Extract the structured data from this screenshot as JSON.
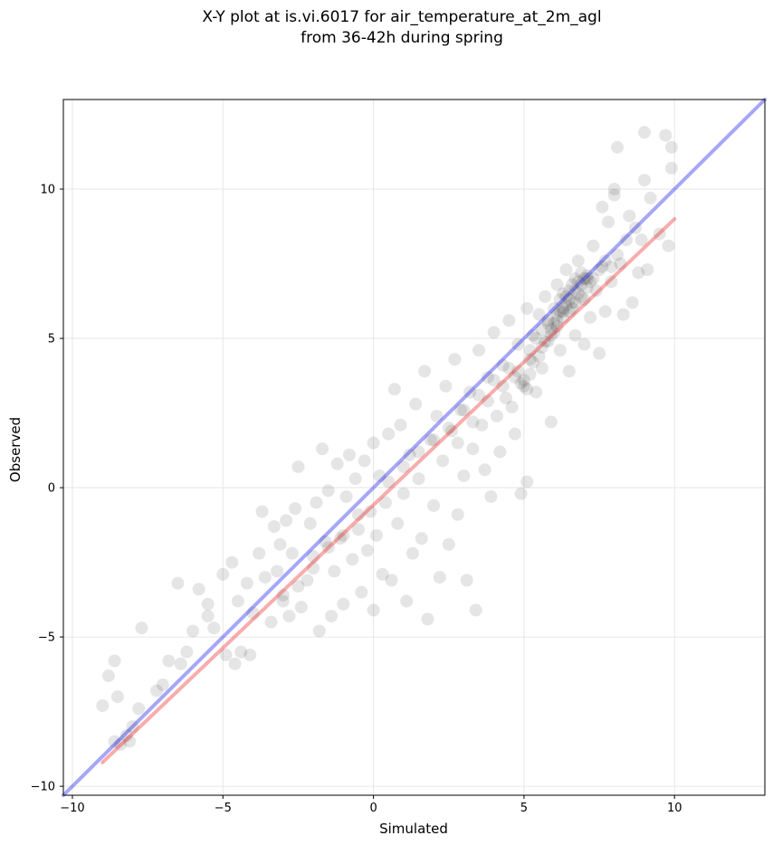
{
  "chart_data": {
    "type": "scatter",
    "title_lines": [
      "X-Y plot at is.vi.6017 for air_temperature_at_2m_agl",
      "from 36-42h during spring"
    ],
    "xlabel": "Simulated",
    "ylabel": "Observed",
    "xlim": [
      -10.3,
      13.0
    ],
    "ylim": [
      -10.3,
      13.0
    ],
    "xticks": [
      -10,
      -5,
      0,
      5,
      10
    ],
    "yticks": [
      -10,
      -5,
      0,
      5,
      10
    ],
    "xtick_labels": [
      "−10",
      "−5",
      "0",
      "5",
      "10"
    ],
    "ytick_labels": [
      "−10",
      "−5",
      "0",
      "5",
      "10"
    ],
    "grid": true,
    "colors": {
      "points": "#000000",
      "identity_line": "#0000ee",
      "fit_line": "#ee1111"
    },
    "series": [
      {
        "type": "scatter",
        "points": [
          [
            -9.0,
            -7.3
          ],
          [
            -8.8,
            -6.3
          ],
          [
            -8.6,
            -5.8
          ],
          [
            -8.5,
            -7.0
          ],
          [
            -8.6,
            -8.5
          ],
          [
            -8.4,
            -8.6
          ],
          [
            -8.2,
            -8.3
          ],
          [
            -8.0,
            -8.0
          ],
          [
            -8.1,
            -8.5
          ],
          [
            -7.8,
            -7.4
          ],
          [
            -7.7,
            -4.7
          ],
          [
            -7.2,
            -6.8
          ],
          [
            -7.0,
            -6.6
          ],
          [
            -6.8,
            -5.8
          ],
          [
            -6.5,
            -3.2
          ],
          [
            -6.4,
            -5.9
          ],
          [
            -6.2,
            -5.5
          ],
          [
            -6.0,
            -4.8
          ],
          [
            -5.8,
            -3.4
          ],
          [
            -5.5,
            -4.3
          ],
          [
            -5.5,
            -3.9
          ],
          [
            -5.3,
            -4.7
          ],
          [
            -5.0,
            -2.9
          ],
          [
            -4.9,
            -5.6
          ],
          [
            -4.7,
            -2.5
          ],
          [
            -4.6,
            -5.9
          ],
          [
            -4.5,
            -3.8
          ],
          [
            -4.4,
            -5.5
          ],
          [
            -4.2,
            -3.2
          ],
          [
            -4.1,
            -5.6
          ],
          [
            -4.0,
            -4.2
          ],
          [
            -3.8,
            -2.2
          ],
          [
            -3.7,
            -0.8
          ],
          [
            -3.6,
            -3.0
          ],
          [
            -3.4,
            -4.5
          ],
          [
            -3.3,
            -1.3
          ],
          [
            -3.2,
            -2.8
          ],
          [
            -3.1,
            -1.9
          ],
          [
            -3.0,
            -3.6
          ],
          [
            -2.9,
            -1.1
          ],
          [
            -2.8,
            -4.3
          ],
          [
            -2.7,
            -2.2
          ],
          [
            -2.6,
            -0.7
          ],
          [
            -2.5,
            0.7
          ],
          [
            -2.4,
            -4.0
          ],
          [
            -2.2,
            -3.1
          ],
          [
            -2.1,
            -1.2
          ],
          [
            -2.0,
            -2.3
          ],
          [
            -1.9,
            -0.5
          ],
          [
            -1.8,
            -4.8
          ],
          [
            -1.7,
            1.3
          ],
          [
            -1.6,
            -1.8
          ],
          [
            -1.5,
            -0.1
          ],
          [
            -1.4,
            -4.3
          ],
          [
            -1.3,
            -2.8
          ],
          [
            -1.2,
            0.8
          ],
          [
            -1.1,
            -1.7
          ],
          [
            -1.0,
            -3.9
          ],
          [
            -0.9,
            -0.3
          ],
          [
            -0.8,
            1.1
          ],
          [
            -0.7,
            -2.4
          ],
          [
            -0.6,
            0.3
          ],
          [
            -0.5,
            -1.4
          ],
          [
            -0.4,
            -3.5
          ],
          [
            -0.3,
            0.9
          ],
          [
            -0.2,
            -2.1
          ],
          [
            -0.1,
            -0.8
          ],
          [
            0.0,
            -4.1
          ],
          [
            0.0,
            1.5
          ],
          [
            0.1,
            -1.6
          ],
          [
            0.2,
            0.4
          ],
          [
            0.3,
            -2.9
          ],
          [
            0.4,
            -0.5
          ],
          [
            0.5,
            1.8
          ],
          [
            0.6,
            -3.1
          ],
          [
            0.7,
            3.3
          ],
          [
            0.8,
            -1.2
          ],
          [
            0.9,
            2.1
          ],
          [
            1.0,
            -0.2
          ],
          [
            1.1,
            -3.8
          ],
          [
            1.2,
            1.1
          ],
          [
            1.3,
            -2.2
          ],
          [
            1.4,
            2.8
          ],
          [
            1.5,
            0.3
          ],
          [
            1.6,
            -1.7
          ],
          [
            1.7,
            3.9
          ],
          [
            1.8,
            -4.4
          ],
          [
            1.9,
            1.6
          ],
          [
            2.0,
            -0.6
          ],
          [
            2.1,
            2.4
          ],
          [
            2.2,
            -3.0
          ],
          [
            2.3,
            0.9
          ],
          [
            2.4,
            3.4
          ],
          [
            2.5,
            -1.9
          ],
          [
            2.6,
            1.9
          ],
          [
            2.7,
            4.3
          ],
          [
            2.8,
            -0.9
          ],
          [
            2.9,
            2.6
          ],
          [
            3.0,
            0.4
          ],
          [
            3.1,
            -3.1
          ],
          [
            3.2,
            3.2
          ],
          [
            3.3,
            1.3
          ],
          [
            3.4,
            -4.1
          ],
          [
            3.5,
            4.6
          ],
          [
            3.6,
            2.1
          ],
          [
            3.7,
            0.6
          ],
          [
            3.8,
            3.7
          ],
          [
            3.9,
            -0.3
          ],
          [
            4.0,
            5.2
          ],
          [
            4.1,
            2.4
          ],
          [
            4.2,
            1.2
          ],
          [
            4.3,
            4.1
          ],
          [
            4.4,
            3.0
          ],
          [
            4.5,
            5.6
          ],
          [
            4.6,
            2.7
          ],
          [
            4.7,
            1.8
          ],
          [
            4.8,
            4.8
          ],
          [
            4.9,
            -0.2
          ],
          [
            5.0,
            3.6
          ],
          [
            5.1,
            6.0
          ],
          [
            5.1,
            0.2
          ],
          [
            5.2,
            4.3
          ],
          [
            5.3,
            5.1
          ],
          [
            5.4,
            3.2
          ],
          [
            5.5,
            5.8
          ],
          [
            5.6,
            4.0
          ],
          [
            5.7,
            6.4
          ],
          [
            5.8,
            4.9
          ],
          [
            5.9,
            2.2
          ],
          [
            6.0,
            5.5
          ],
          [
            6.1,
            6.8
          ],
          [
            6.2,
            4.6
          ],
          [
            6.3,
            5.9
          ],
          [
            6.4,
            7.3
          ],
          [
            6.5,
            3.9
          ],
          [
            6.6,
            6.2
          ],
          [
            6.7,
            5.1
          ],
          [
            6.8,
            7.6
          ],
          [
            6.9,
            6.4
          ],
          [
            7.0,
            4.8
          ],
          [
            7.1,
            7.0
          ],
          [
            7.2,
            5.7
          ],
          [
            7.3,
            8.1
          ],
          [
            7.4,
            6.6
          ],
          [
            7.5,
            4.5
          ],
          [
            7.6,
            7.4
          ],
          [
            7.7,
            5.9
          ],
          [
            7.8,
            8.9
          ],
          [
            7.9,
            6.9
          ],
          [
            8.0,
            9.8
          ],
          [
            8.1,
            11.4
          ],
          [
            8.2,
            7.5
          ],
          [
            8.3,
            5.8
          ],
          [
            8.4,
            8.3
          ],
          [
            8.5,
            9.1
          ],
          [
            8.6,
            6.2
          ],
          [
            8.7,
            8.7
          ],
          [
            8.8,
            7.2
          ],
          [
            8.9,
            8.3
          ],
          [
            9.0,
            11.9
          ],
          [
            9.0,
            10.3
          ],
          [
            9.1,
            7.3
          ],
          [
            9.2,
            9.7
          ],
          [
            9.5,
            8.5
          ],
          [
            9.7,
            11.8
          ],
          [
            9.8,
            8.1
          ],
          [
            9.9,
            11.4
          ],
          [
            9.9,
            10.7
          ],
          [
            8.0,
            10.0
          ],
          [
            7.6,
            9.4
          ],
          [
            5.6,
            5.3
          ],
          [
            5.8,
            5.6
          ],
          [
            6.0,
            6.0
          ],
          [
            6.2,
            6.3
          ],
          [
            6.4,
            6.1
          ],
          [
            6.6,
            6.8
          ],
          [
            6.8,
            6.5
          ],
          [
            7.0,
            7.0
          ],
          [
            7.2,
            6.9
          ],
          [
            6.1,
            5.4
          ],
          [
            6.3,
            5.7
          ],
          [
            6.5,
            6.6
          ],
          [
            6.7,
            6.2
          ],
          [
            6.9,
            7.2
          ],
          [
            7.1,
            6.7
          ],
          [
            5.9,
            5.1
          ],
          [
            6.1,
            5.8
          ],
          [
            6.3,
            6.5
          ],
          [
            6.5,
            5.9
          ],
          [
            6.7,
            7.0
          ],
          [
            5.2,
            4.6
          ],
          [
            5.4,
            5.0
          ],
          [
            5.6,
            4.7
          ],
          [
            5.8,
            5.5
          ],
          [
            6.0,
            5.2
          ],
          [
            6.2,
            5.9
          ],
          [
            6.4,
            6.4
          ],
          [
            6.6,
            6.0
          ],
          [
            6.8,
            6.9
          ],
          [
            7.0,
            6.3
          ],
          [
            5.0,
            3.4
          ],
          [
            5.2,
            3.8
          ],
          [
            4.9,
            3.5
          ],
          [
            5.1,
            3.3
          ],
          [
            4.8,
            3.9
          ],
          [
            5.3,
            4.2
          ],
          [
            5.5,
            4.4
          ],
          [
            5.7,
            4.9
          ],
          [
            5.9,
            5.3
          ],
          [
            6.1,
            5.6
          ],
          [
            6.3,
            6.0
          ],
          [
            6.5,
            6.3
          ],
          [
            6.7,
            6.6
          ],
          [
            6.9,
            6.8
          ],
          [
            7.1,
            7.1
          ],
          [
            7.3,
            7.0
          ],
          [
            7.5,
            7.3
          ],
          [
            7.7,
            7.6
          ],
          [
            7.9,
            7.4
          ],
          [
            8.1,
            7.8
          ],
          [
            2.5,
            2.0
          ],
          [
            3.0,
            2.6
          ],
          [
            3.5,
            3.1
          ],
          [
            4.0,
            3.6
          ],
          [
            4.5,
            4.0
          ],
          [
            2.8,
            1.5
          ],
          [
            3.3,
            2.2
          ],
          [
            3.8,
            2.9
          ],
          [
            4.3,
            3.4
          ],
          [
            4.7,
            3.7
          ],
          [
            1.5,
            1.2
          ],
          [
            2.0,
            1.6
          ],
          [
            0.5,
            0.2
          ],
          [
            1.0,
            0.7
          ],
          [
            -0.5,
            -0.9
          ],
          [
            -1.0,
            -1.6
          ],
          [
            -1.5,
            -2.0
          ],
          [
            -2.0,
            -2.7
          ],
          [
            -2.5,
            -3.3
          ],
          [
            -3.0,
            -3.8
          ]
        ]
      },
      {
        "type": "line",
        "points": [
          [
            -10.3,
            -10.3
          ],
          [
            13.0,
            13.0
          ]
        ]
      },
      {
        "type": "line",
        "points": [
          [
            -9.0,
            -9.2
          ],
          [
            10.0,
            9.0
          ]
        ]
      }
    ]
  }
}
